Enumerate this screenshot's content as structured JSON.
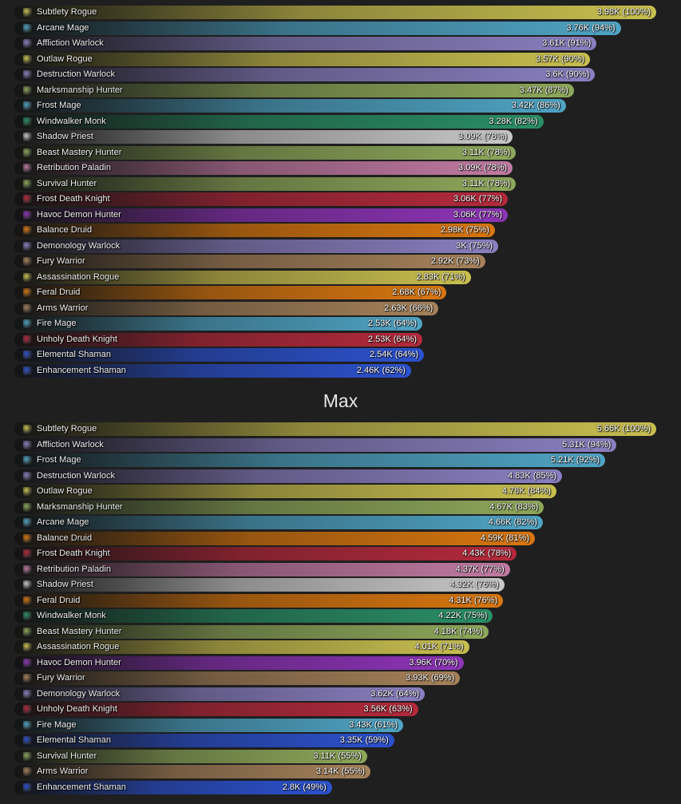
{
  "spec_colors": {
    "Subtlety Rogue": "#c9bf4f",
    "Outlaw Rogue": "#c9bf4f",
    "Assassination Rogue": "#c9bf4f",
    "Arcane Mage": "#4fa4c4",
    "Frost Mage": "#4fa4c4",
    "Fire Mage": "#4fa4c4",
    "Affliction Warlock": "#8a7fc0",
    "Destruction Warlock": "#8a7fc0",
    "Demonology Warlock": "#8a7fc0",
    "Marksmanship Hunter": "#8ea85a",
    "Beast Mastery Hunter": "#8ea85a",
    "Survival Hunter": "#8ea85a",
    "Windwalker Monk": "#2a8f66",
    "Shadow Priest": "#c8c8c8",
    "Retribution Paladin": "#c27aa3",
    "Frost Death Knight": "#b52a3c",
    "Unholy Death Knight": "#b52a3c",
    "Havoc Demon Hunter": "#8e34b8",
    "Balance Druid": "#d9770f",
    "Feral Druid": "#d9770f",
    "Fury Warrior": "#a6825a",
    "Arms Warrior": "#a6825a",
    "Elemental Shaman": "#2c52cf",
    "Enhancement Shaman": "#2c52cf"
  },
  "section_title": "Max",
  "chart_data": [
    {
      "type": "bar",
      "orientation": "horizontal",
      "title": "",
      "max_value": 3.98,
      "categories": [
        "Subtlety Rogue",
        "Arcane Mage",
        "Affliction Warlock",
        "Outlaw Rogue",
        "Destruction Warlock",
        "Marksmanship Hunter",
        "Frost Mage",
        "Windwalker Monk",
        "Shadow Priest",
        "Beast Mastery Hunter",
        "Retribution Paladin",
        "Survival Hunter",
        "Frost Death Knight",
        "Havoc Demon Hunter",
        "Balance Druid",
        "Demonology Warlock",
        "Fury Warrior",
        "Assassination Rogue",
        "Feral Druid",
        "Arms Warrior",
        "Fire Mage",
        "Unholy Death Knight",
        "Elemental Shaman",
        "Enhancement Shaman"
      ],
      "values": [
        3.98,
        3.76,
        3.61,
        3.57,
        3.6,
        3.47,
        3.42,
        3.28,
        3.09,
        3.11,
        3.09,
        3.11,
        3.06,
        3.06,
        2.98,
        3,
        2.92,
        2.83,
        2.68,
        2.63,
        2.53,
        2.53,
        2.54,
        2.46
      ],
      "labels": [
        "3.98K (100%)",
        "3.76K (94%)",
        "3.61K (91%)",
        "3.57K (90%)",
        "3.6K (90%)",
        "3.47K (87%)",
        "3.42K (86%)",
        "3.28K (82%)",
        "3.09K (78%)",
        "3.11K (78%)",
        "3.09K (78%)",
        "3.11K (78%)",
        "3.06K (77%)",
        "3.06K (77%)",
        "2.98K (75%)",
        "3K (75%)",
        "2.92K (73%)",
        "2.83K (71%)",
        "2.68K (67%)",
        "2.63K (66%)",
        "2.53K (64%)",
        "2.53K (64%)",
        "2.54K (64%)",
        "2.46K (62%)"
      ],
      "percents": [
        100,
        94,
        91,
        90,
        90,
        87,
        86,
        82,
        78,
        78,
        78,
        78,
        77,
        77,
        75,
        75,
        73,
        71,
        67,
        66,
        64,
        64,
        64,
        62
      ]
    },
    {
      "type": "bar",
      "orientation": "horizontal",
      "title": "Max",
      "max_value": 5.66,
      "categories": [
        "Subtlety Rogue",
        "Affliction Warlock",
        "Frost Mage",
        "Destruction Warlock",
        "Outlaw Rogue",
        "Marksmanship Hunter",
        "Arcane Mage",
        "Balance Druid",
        "Frost Death Knight",
        "Retribution Paladin",
        "Shadow Priest",
        "Feral Druid",
        "Windwalker Monk",
        "Beast Mastery Hunter",
        "Assassination Rogue",
        "Havoc Demon Hunter",
        "Fury Warrior",
        "Demonology Warlock",
        "Unholy Death Knight",
        "Fire Mage",
        "Elemental Shaman",
        "Survival Hunter",
        "Arms Warrior",
        "Enhancement Shaman"
      ],
      "values": [
        5.66,
        5.31,
        5.21,
        4.83,
        4.78,
        4.67,
        4.66,
        4.59,
        4.43,
        4.37,
        4.32,
        4.31,
        4.22,
        4.18,
        4.01,
        3.96,
        3.93,
        3.62,
        3.56,
        3.43,
        3.35,
        3.11,
        3.14,
        2.8
      ],
      "labels": [
        "5.66K (100%)",
        "5.31K (94%)",
        "5.21K (92%)",
        "4.83K (85%)",
        "4.78K (84%)",
        "4.67K (83%)",
        "4.66K (82%)",
        "4.59K (81%)",
        "4.43K (78%)",
        "4.37K (77%)",
        "4.32K (76%)",
        "4.31K (76%)",
        "4.22K (75%)",
        "4.18K (74%)",
        "4.01K (71%)",
        "3.96K (70%)",
        "3.93K (69%)",
        "3.62K (64%)",
        "3.56K (63%)",
        "3.43K (61%)",
        "3.35K (59%)",
        "3.11K (55%)",
        "3.14K (55%)",
        "2.8K (49%)"
      ],
      "percents": [
        100,
        94,
        92,
        85,
        84,
        83,
        82,
        81,
        78,
        77,
        76,
        76,
        75,
        74,
        71,
        70,
        69,
        64,
        63,
        61,
        59,
        55,
        55,
        49
      ]
    }
  ]
}
